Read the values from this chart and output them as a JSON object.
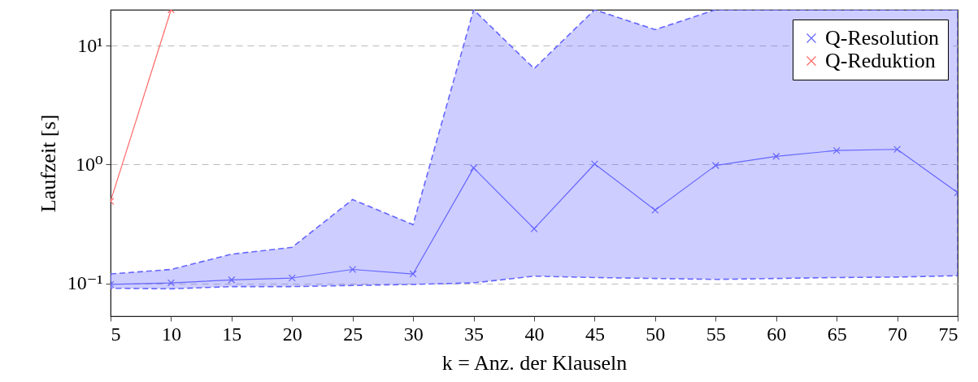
{
  "chart_data": {
    "type": "line",
    "xlabel": "k = Anz. der Klauseln",
    "ylabel": "Laufzeit [s]",
    "x": [
      5,
      10,
      15,
      20,
      25,
      30,
      35,
      40,
      45,
      50,
      55,
      60,
      65,
      70,
      75
    ],
    "series": [
      {
        "name": "Q-Resolution",
        "color": "#6666ff",
        "values": [
          0.098,
          0.101,
          0.107,
          0.111,
          0.131,
          0.12,
          0.935,
          0.288,
          1.01,
          0.413,
          0.98,
          1.17,
          1.31,
          1.34,
          0.58
        ],
        "lower": [
          0.091,
          0.09,
          0.094,
          0.094,
          0.096,
          0.098,
          0.101,
          0.115,
          0.112,
          0.11,
          0.108,
          0.11,
          0.112,
          0.113,
          0.116
        ],
        "upper": [
          0.12,
          0.131,
          0.176,
          0.201,
          0.507,
          0.312,
          20,
          6.4,
          20,
          13.6,
          20,
          20,
          20,
          20,
          20
        ]
      },
      {
        "name": "Q-Reduktion",
        "color": "#ff6666",
        "x": [
          5,
          10
        ],
        "values": [
          0.49,
          20
        ]
      }
    ],
    "xlim": [
      5,
      75
    ],
    "xticks": [
      5,
      10,
      15,
      20,
      25,
      30,
      35,
      40,
      45,
      50,
      55,
      60,
      65,
      70,
      75
    ],
    "ylim": [
      0.053,
      20
    ],
    "yticks": [
      {
        "value": 0.1,
        "label": "10⁻¹"
      },
      {
        "value": 1,
        "label": "10⁰"
      },
      {
        "value": 10,
        "label": "10¹"
      }
    ],
    "log": true,
    "grid": "y",
    "legend": "top right",
    "marker": "cross",
    "line_style": "solid"
  }
}
